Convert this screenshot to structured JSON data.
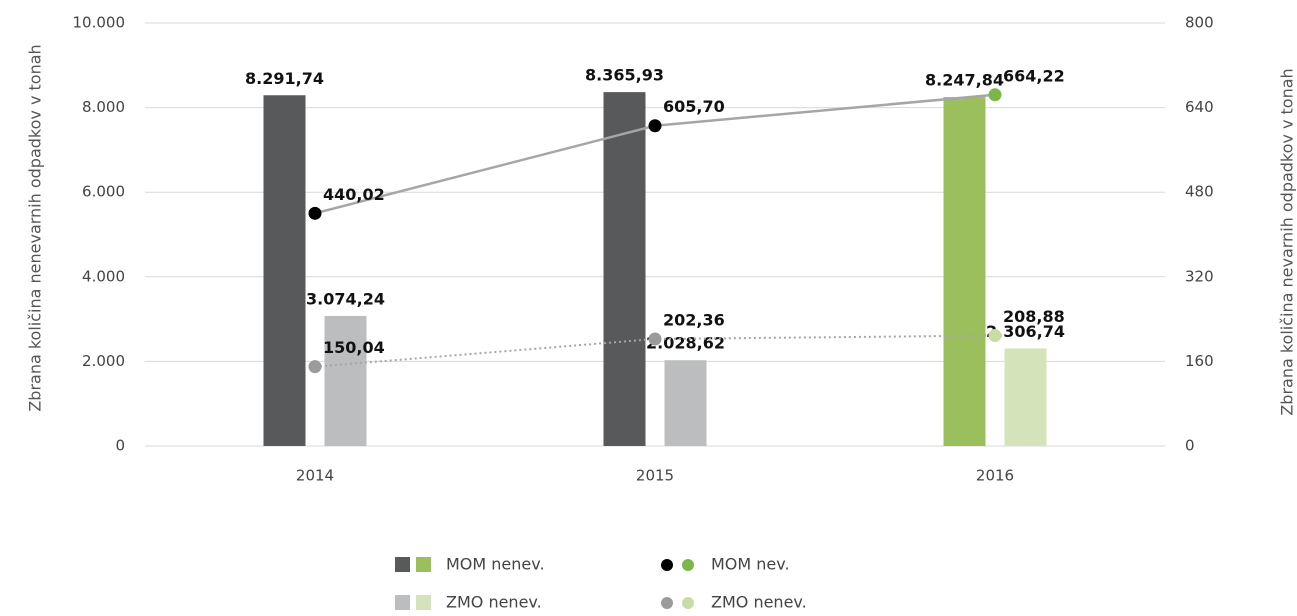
{
  "chart_data": {
    "type": "bar",
    "categories": [
      "2014",
      "2015",
      "2016"
    ],
    "ylabel": "Zbrana količina nenevarnih odpadkov v tonah",
    "y2label": "Zbrana količina nevarnih odpadkov v tonah",
    "ylim": [
      0,
      10000
    ],
    "yticks": [
      0,
      {
        "value": 2000,
        "label": "2.000"
      },
      {
        "value": 4000,
        "label": "4.000"
      },
      {
        "value": 6000,
        "label": "6.000"
      },
      {
        "value": 8000,
        "label": "8.000"
      },
      {
        "value": 10000,
        "label": "10.000"
      }
    ],
    "y2lim": [
      0,
      800
    ],
    "y2ticks": [
      0,
      160,
      320,
      480,
      640,
      800
    ],
    "grid": true,
    "series": [
      {
        "name": "MOM nenev.",
        "type": "bar",
        "colors": [
          "#58595b",
          "#58595b",
          "#9bbf5c"
        ],
        "values": [
          8291.74,
          8365.93,
          8247.84
        ],
        "value_labels": [
          "8.291,74",
          "8.365,93",
          "8.247,84"
        ]
      },
      {
        "name": "ZMO nenev.",
        "type": "bar",
        "colors": [
          "#bcbdbf",
          "#bcbdbf",
          "#d5e3bb"
        ],
        "values": [
          3074.24,
          2028.62,
          2306.74
        ],
        "value_labels": [
          "3.074,24",
          "2.028,62",
          "2.306,74"
        ]
      },
      {
        "name": "MOM nev.",
        "type": "line",
        "axis": "y2",
        "color": "#a6a6a6",
        "colors": [
          "#000000",
          "#000000",
          "#7ab648"
        ],
        "values": [
          440.02,
          605.7,
          664.22
        ],
        "value_labels": [
          "440,02",
          "605,70",
          "664,22"
        ]
      },
      {
        "name": "ZMO nenev.",
        "type": "line",
        "axis": "y2",
        "dashed": true,
        "color": "#a6a6a6",
        "colors": [
          "#9b9b9b",
          "#9b9b9b",
          "#c8dca6"
        ],
        "values": [
          150.04,
          202.36,
          208.88
        ],
        "value_labels": [
          "150,04",
          "202,36",
          "208,88"
        ]
      }
    ]
  }
}
